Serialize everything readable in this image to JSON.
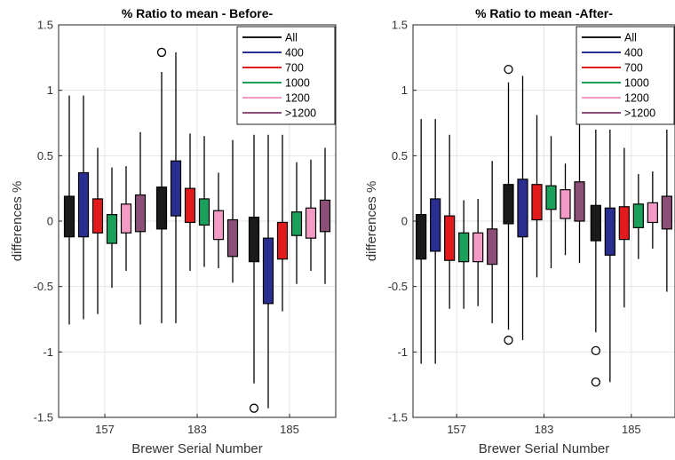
{
  "chart_data": [
    {
      "type": "box",
      "title": "% Ratio to mean - Before-",
      "xlabel": "Brewer Serial Number",
      "ylabel": "differences %",
      "categories": [
        "157",
        "183",
        "185"
      ],
      "ylim": [
        -1.5,
        1.5
      ],
      "yticks": [
        "-1.5",
        "-1",
        "-0.5",
        "0",
        "0.5",
        "1",
        "1.5"
      ],
      "grid": true,
      "legend_position": "top-right",
      "series": [
        {
          "name": "All",
          "color": "#1a1a1a",
          "boxes": [
            {
              "whisker_low": -0.79,
              "q1": -0.12,
              "q3": 0.19,
              "whisker_high": 0.96,
              "outliers": []
            },
            {
              "whisker_low": -0.78,
              "q1": -0.06,
              "q3": 0.26,
              "whisker_high": 1.14,
              "outliers": [
                1.29
              ]
            },
            {
              "whisker_low": -1.24,
              "q1": -0.31,
              "q3": 0.03,
              "whisker_high": 0.66,
              "outliers": [
                -1.43
              ]
            }
          ]
        },
        {
          "name": "400",
          "color": "#2a2f8f",
          "boxes": [
            {
              "whisker_low": -0.75,
              "q1": -0.12,
              "q3": 0.37,
              "whisker_high": 0.96,
              "outliers": []
            },
            {
              "whisker_low": -0.78,
              "q1": 0.04,
              "q3": 0.46,
              "whisker_high": 1.29,
              "outliers": []
            },
            {
              "whisker_low": -1.43,
              "q1": -0.63,
              "q3": -0.13,
              "whisker_high": 0.66,
              "outliers": []
            }
          ]
        },
        {
          "name": "700",
          "color": "#e31a1c",
          "boxes": [
            {
              "whisker_low": -0.71,
              "q1": -0.09,
              "q3": 0.17,
              "whisker_high": 0.56,
              "outliers": []
            },
            {
              "whisker_low": -0.38,
              "q1": -0.01,
              "q3": 0.25,
              "whisker_high": 0.67,
              "outliers": []
            },
            {
              "whisker_low": -0.69,
              "q1": -0.29,
              "q3": -0.01,
              "whisker_high": 0.66,
              "outliers": []
            }
          ]
        },
        {
          "name": "1000",
          "color": "#1aa05a",
          "boxes": [
            {
              "whisker_low": -0.51,
              "q1": -0.17,
              "q3": 0.05,
              "whisker_high": 0.41,
              "outliers": []
            },
            {
              "whisker_low": -0.35,
              "q1": -0.03,
              "q3": 0.17,
              "whisker_high": 0.65,
              "outliers": []
            },
            {
              "whisker_low": -0.48,
              "q1": -0.11,
              "q3": 0.07,
              "whisker_high": 0.45,
              "outliers": []
            }
          ]
        },
        {
          "name": "1200",
          "color": "#f49ac6",
          "boxes": [
            {
              "whisker_low": -0.38,
              "q1": -0.09,
              "q3": 0.13,
              "whisker_high": 0.42,
              "outliers": []
            },
            {
              "whisker_low": -0.36,
              "q1": -0.14,
              "q3": 0.08,
              "whisker_high": 0.37,
              "outliers": []
            },
            {
              "whisker_low": -0.38,
              "q1": -0.13,
              "q3": 0.1,
              "whisker_high": 0.47,
              "outliers": []
            }
          ]
        },
        {
          "name": ">1200",
          "color": "#8b4f78",
          "boxes": [
            {
              "whisker_low": -0.79,
              "q1": -0.08,
              "q3": 0.2,
              "whisker_high": 0.68,
              "outliers": []
            },
            {
              "whisker_low": -0.47,
              "q1": -0.27,
              "q3": 0.01,
              "whisker_high": 0.62,
              "outliers": []
            },
            {
              "whisker_low": -0.48,
              "q1": -0.08,
              "q3": 0.16,
              "whisker_high": 0.56,
              "outliers": []
            }
          ]
        }
      ]
    },
    {
      "type": "box",
      "title": "% Ratio to mean -After-",
      "xlabel": "Brewer Serial Number",
      "ylabel": "differences %",
      "categories": [
        "157",
        "183",
        "185"
      ],
      "ylim": [
        -1.5,
        1.5
      ],
      "yticks": [
        "-1.5",
        "-1",
        "-0.5",
        "0",
        "0.5",
        "1",
        "1.5"
      ],
      "grid": true,
      "legend_position": "top-right",
      "series": [
        {
          "name": "All",
          "color": "#1a1a1a",
          "boxes": [
            {
              "whisker_low": -1.09,
              "q1": -0.29,
              "q3": 0.05,
              "whisker_high": 0.78,
              "outliers": []
            },
            {
              "whisker_low": -0.83,
              "q1": -0.02,
              "q3": 0.28,
              "whisker_high": 1.06,
              "outliers": [
                1.16,
                -0.91
              ]
            },
            {
              "whisker_low": -0.85,
              "q1": -0.15,
              "q3": 0.12,
              "whisker_high": 0.7,
              "outliers": [
                -0.99,
                -1.23
              ]
            }
          ]
        },
        {
          "name": "400",
          "color": "#2a2f8f",
          "boxes": [
            {
              "whisker_low": -1.09,
              "q1": -0.23,
              "q3": 0.17,
              "whisker_high": 0.78,
              "outliers": []
            },
            {
              "whisker_low": -0.91,
              "q1": -0.12,
              "q3": 0.32,
              "whisker_high": 1.11,
              "outliers": []
            },
            {
              "whisker_low": -1.23,
              "q1": -0.26,
              "q3": 0.1,
              "whisker_high": 0.7,
              "outliers": []
            }
          ]
        },
        {
          "name": "700",
          "color": "#e31a1c",
          "boxes": [
            {
              "whisker_low": -0.67,
              "q1": -0.3,
              "q3": 0.04,
              "whisker_high": 0.66,
              "outliers": []
            },
            {
              "whisker_low": -0.43,
              "q1": 0.01,
              "q3": 0.28,
              "whisker_high": 0.81,
              "outliers": []
            },
            {
              "whisker_low": -0.66,
              "q1": -0.14,
              "q3": 0.11,
              "whisker_high": 0.56,
              "outliers": []
            }
          ]
        },
        {
          "name": "1000",
          "color": "#1aa05a",
          "boxes": [
            {
              "whisker_low": -0.67,
              "q1": -0.31,
              "q3": -0.09,
              "whisker_high": 0.16,
              "outliers": []
            },
            {
              "whisker_low": -0.36,
              "q1": 0.09,
              "q3": 0.27,
              "whisker_high": 0.65,
              "outliers": []
            },
            {
              "whisker_low": -0.29,
              "q1": -0.05,
              "q3": 0.13,
              "whisker_high": 0.36,
              "outliers": []
            }
          ]
        },
        {
          "name": "1200",
          "color": "#f49ac6",
          "boxes": [
            {
              "whisker_low": -0.65,
              "q1": -0.31,
              "q3": -0.09,
              "whisker_high": 0.17,
              "outliers": []
            },
            {
              "whisker_low": -0.26,
              "q1": 0.02,
              "q3": 0.24,
              "whisker_high": 0.44,
              "outliers": []
            },
            {
              "whisker_low": -0.21,
              "q1": -0.01,
              "q3": 0.14,
              "whisker_high": 0.38,
              "outliers": []
            }
          ]
        },
        {
          "name": ">1200",
          "color": "#8b4f78",
          "boxes": [
            {
              "whisker_low": -0.78,
              "q1": -0.33,
              "q3": -0.06,
              "whisker_high": 0.46,
              "outliers": []
            },
            {
              "whisker_low": -0.32,
              "q1": 0.0,
              "q3": 0.3,
              "whisker_high": 1.16,
              "outliers": []
            },
            {
              "whisker_low": -0.54,
              "q1": -0.06,
              "q3": 0.19,
              "whisker_high": 0.7,
              "outliers": []
            }
          ]
        }
      ]
    }
  ]
}
